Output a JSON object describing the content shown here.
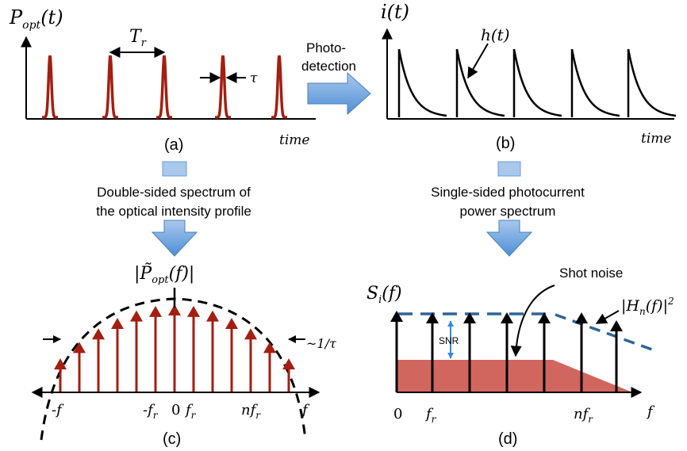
{
  "panel_a": {
    "ylabel_main": "P",
    "ylabel_sub": "opt",
    "ylabel_arg": "(t)",
    "period_main": "T",
    "period_sub": "r",
    "width_label": "τ",
    "time_label": "time",
    "caption": "(a)"
  },
  "arrow_ab": {
    "line1": "Photo-",
    "line2": "detection"
  },
  "panel_b": {
    "ylabel": "i(t)",
    "impulse_label": "h(t)",
    "time_label": "time",
    "caption": "(b)"
  },
  "flow_left": {
    "line1": "Double-sided spectrum of",
    "line2": "the optical intensity profile"
  },
  "flow_right": {
    "line1": "Single-sided photocurrent",
    "line2": "power spectrum"
  },
  "panel_c": {
    "title_pre": "|",
    "title_main": "P̃",
    "title_sub": "opt",
    "title_post": "(f)|",
    "width_label": "~1/τ",
    "tick_neg_f": "-f",
    "tick_neg_fr_main": "-f",
    "tick_neg_fr_sub": "r",
    "tick_zero": "0",
    "tick_fr_main": "f",
    "tick_fr_sub": "r",
    "tick_nfr_main": "nf",
    "tick_nfr_sub": "r",
    "tick_f": "f",
    "caption": "(c)"
  },
  "panel_d": {
    "ylabel_main": "S",
    "ylabel_sub": "i",
    "ylabel_arg": "(f)",
    "shot_noise": "Shot noise",
    "snr": "SNR",
    "hn_pre": "|H",
    "hn_sub": "n",
    "hn_post": "(f)|",
    "hn_sup": "2",
    "tick_zero": "0",
    "tick_fr_main": "f",
    "tick_fr_sub": "r",
    "tick_nfr_main": "nf",
    "tick_nfr_sub": "r",
    "tick_f": "f",
    "caption": "(d)"
  },
  "colors": {
    "pulse": "#a21f12",
    "noise_fill": "#d1665f",
    "blue_arrow": "#5b9bd5",
    "dashed_blue": "#2f6496",
    "snr_arrow": "#3a86e0",
    "black": "#000000"
  }
}
